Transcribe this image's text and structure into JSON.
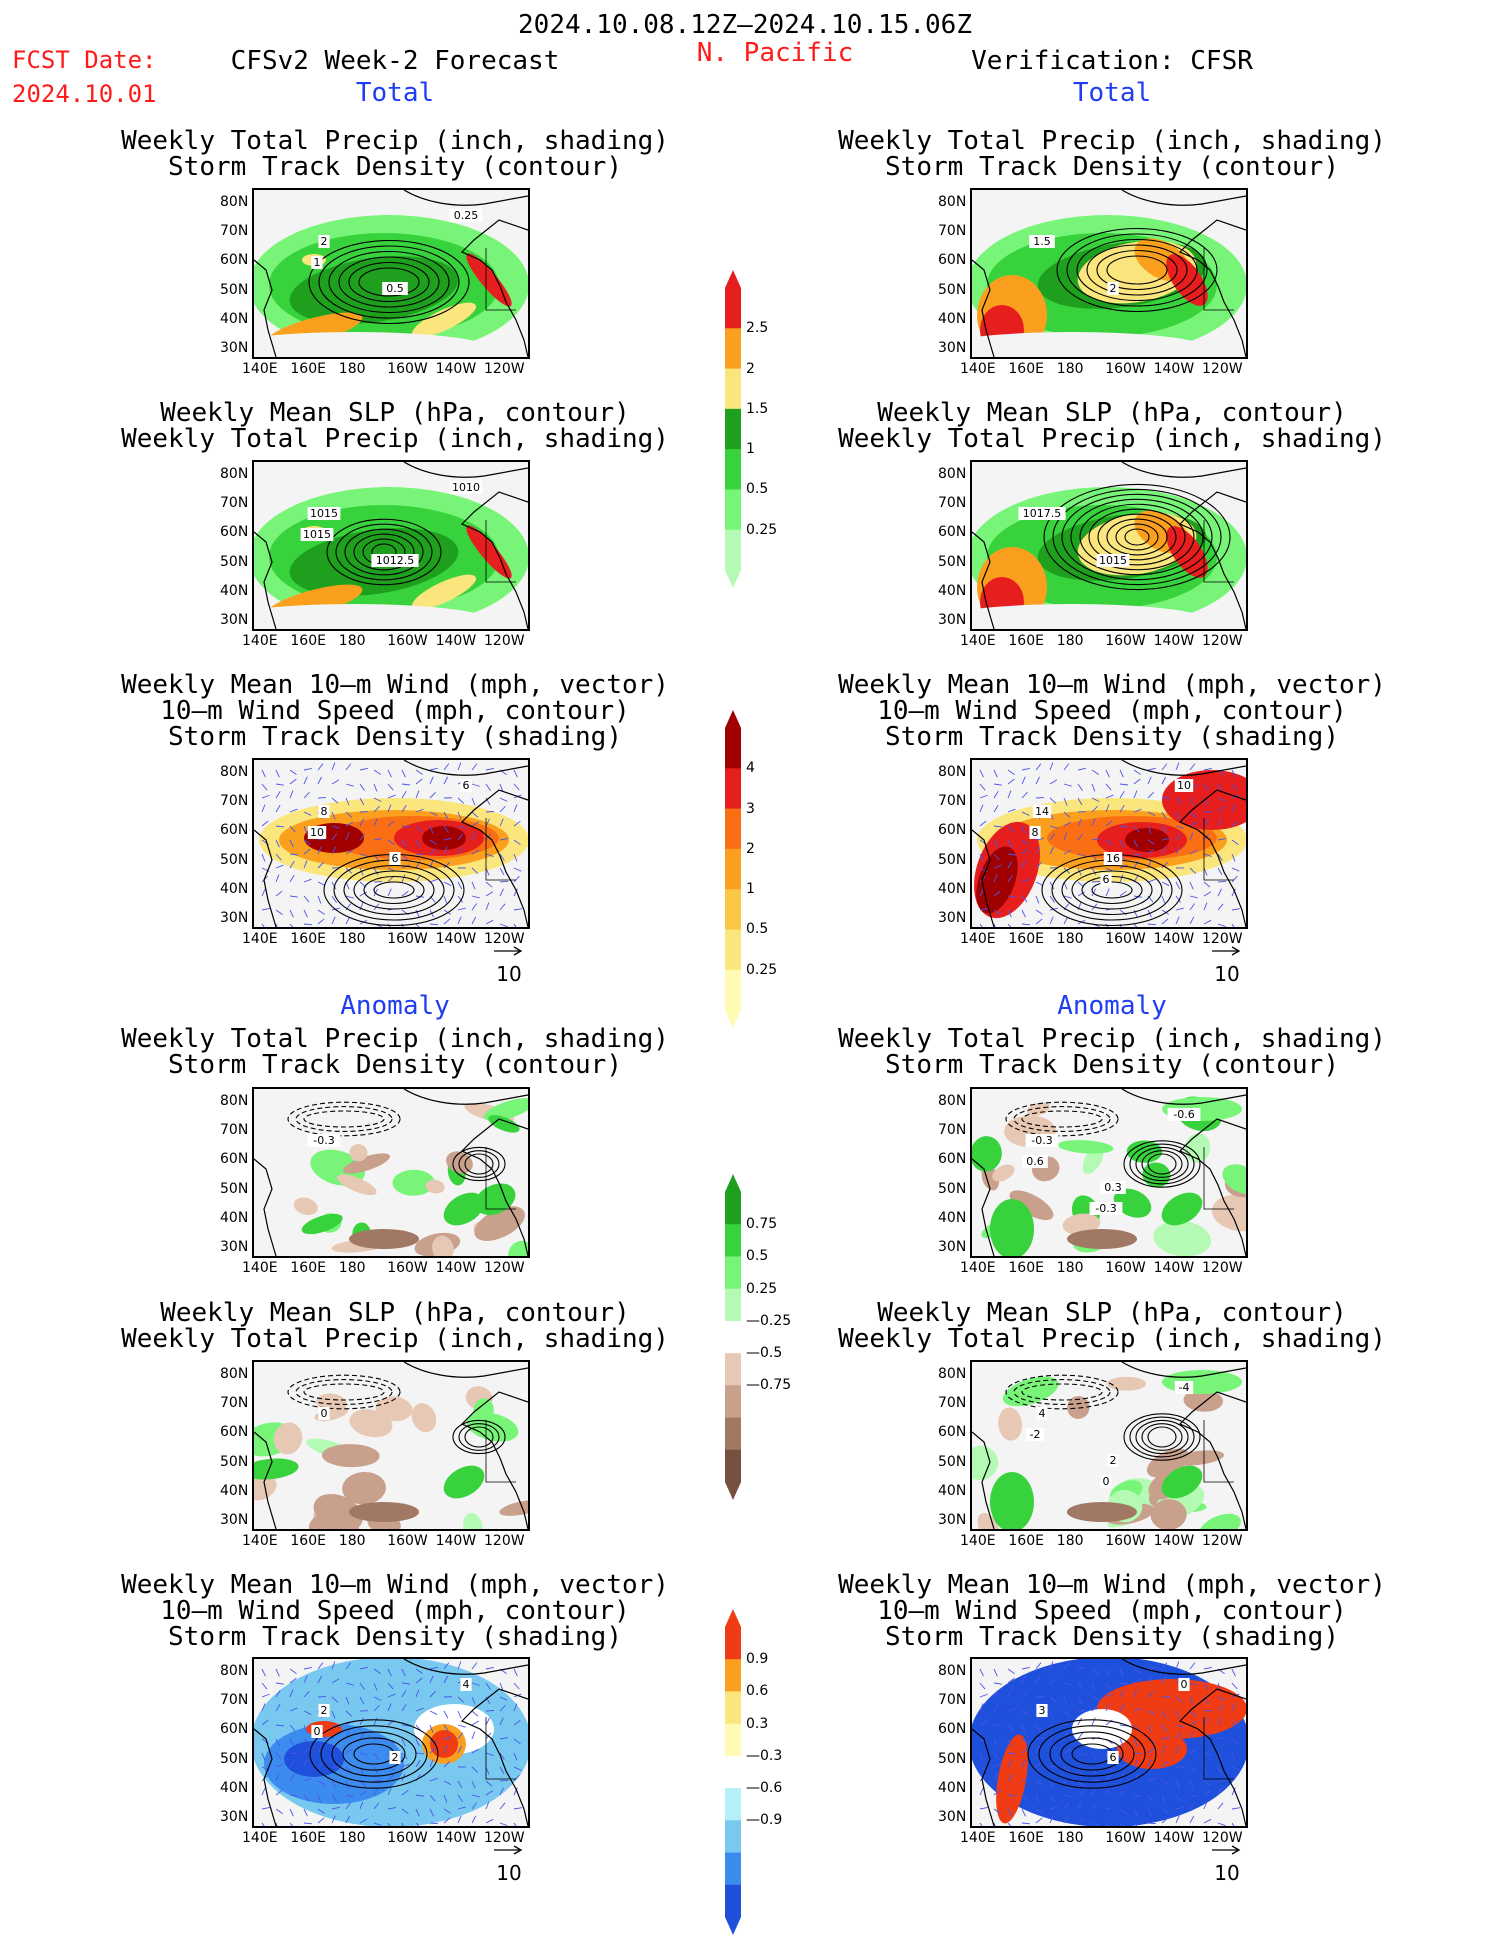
{
  "header": {
    "date_range": "2024.10.08.12Z—2024.10.15.06Z",
    "fcst_label": "FCST Date:",
    "fcst_date": "2024.10.01",
    "model_title": "CFSv2 Week-2 Forecast",
    "region": "N. Pacific",
    "verification": "Verification: CFSR"
  },
  "sections": {
    "total": "Total",
    "anomaly": "Anomaly"
  },
  "panel_titles": {
    "precip_storm": [
      "Weekly Total Precip (inch, shading)",
      "Storm Track Density (contour)"
    ],
    "slp_precip": [
      "Weekly Mean SLP (hPa, contour)",
      "Weekly Total Precip (inch, shading)"
    ],
    "wind_storm": [
      "Weekly Mean 10—m Wind (mph, vector)",
      "10—m Wind Speed (mph, contour)",
      "Storm Track Density (shading)"
    ]
  },
  "axes": {
    "lat_ticks": [
      "80N",
      "70N",
      "60N",
      "50N",
      "40N",
      "30N"
    ],
    "lon_ticks": [
      "140E",
      "160E",
      "180",
      "160W",
      "140W",
      "120W"
    ]
  },
  "vector_ref": "10",
  "chart_data": [
    {
      "type": "heatmap",
      "id": "fcst-total-precip",
      "title": "Weekly Total Precip (inch, shading) / Storm Track Density (contour)",
      "contour_labels": [
        "2",
        "0.5",
        "0.25",
        "1"
      ],
      "colors": [
        "#b4fab4",
        "#78f578",
        "#37d23c",
        "#1ea01e",
        "#fae67d",
        "#faa01e",
        "#e61e1e"
      ]
    },
    {
      "type": "heatmap",
      "id": "fcst-total-slp",
      "title": "Weekly Mean SLP (hPa, contour) / Weekly Total Precip (inch, shading)",
      "contour_labels": [
        "1015",
        "1012.5",
        "1010",
        "1015"
      ]
    },
    {
      "type": "heatmap",
      "id": "fcst-total-wind",
      "title": "Weekly Mean 10-m Wind / 10-m Wind Speed / Storm Track Density",
      "contour_labels": [
        "8",
        "6",
        "6",
        "10"
      ]
    },
    {
      "type": "heatmap",
      "id": "fcst-anom-precip",
      "title": "Weekly Total Precip anomaly / Storm Track Density anomaly",
      "contour_labels": [
        "-0.3"
      ]
    },
    {
      "type": "heatmap",
      "id": "fcst-anom-slp",
      "title": "Weekly Mean SLP anomaly / Weekly Total Precip anomaly",
      "contour_labels": [
        "0"
      ]
    },
    {
      "type": "heatmap",
      "id": "fcst-anom-wind",
      "title": "Weekly Mean 10-m Wind anomaly / Storm Track Density anomaly",
      "contour_labels": [
        "2",
        "2",
        "4",
        "0"
      ]
    },
    {
      "type": "heatmap",
      "id": "ver-total-precip",
      "title": "Weekly Total Precip (inch, shading) / Storm Track Density (contour)",
      "contour_labels": [
        "1.5",
        "2"
      ]
    },
    {
      "type": "heatmap",
      "id": "ver-total-slp",
      "title": "Weekly Mean SLP (hPa, contour) / Weekly Total Precip (inch, shading)",
      "contour_labels": [
        "1017.5",
        "1015"
      ]
    },
    {
      "type": "heatmap",
      "id": "ver-total-wind",
      "title": "Weekly Mean 10-m Wind / 10-m Wind Speed / Storm Track Density",
      "contour_labels": [
        "14",
        "16",
        "10",
        "8",
        "6"
      ]
    },
    {
      "type": "heatmap",
      "id": "ver-anom-precip",
      "title": "Weekly Total Precip anomaly / Storm Track Density anomaly",
      "contour_labels": [
        "-0.3",
        "0.3",
        "-0.6",
        "0.6",
        "-0.3"
      ]
    },
    {
      "type": "heatmap",
      "id": "ver-anom-slp",
      "title": "Weekly Mean SLP anomaly / Weekly Total Precip anomaly",
      "contour_labels": [
        "4",
        "2",
        "-4",
        "-2",
        "0"
      ]
    },
    {
      "type": "heatmap",
      "id": "ver-anom-wind",
      "title": "Weekly Mean 10-m Wind anomaly / Storm Track Density anomaly",
      "contour_labels": [
        "3",
        "6",
        "0"
      ]
    }
  ],
  "colorbars": {
    "precip_total": {
      "labels": [
        "2.5",
        "2",
        "1.5",
        "1",
        "0.5",
        "0.25"
      ],
      "colors": [
        "#e61e1e",
        "#faa01e",
        "#fae67d",
        "#1ea01e",
        "#37d23c",
        "#78f578",
        "#b4fab4"
      ]
    },
    "storm_total": {
      "labels": [
        "4",
        "3",
        "2",
        "1",
        "0.5",
        "0.25"
      ],
      "colors": [
        "#a00000",
        "#e61e1e",
        "#fa6e14",
        "#faa01e",
        "#fac846",
        "#fae67d",
        "#fffab4"
      ]
    },
    "precip_anom": {
      "labels": [
        "0.75",
        "0.5",
        "0.25",
        "—0.25",
        "—0.5",
        "—0.75"
      ],
      "colors": [
        "#1ea01e",
        "#37d23c",
        "#78f578",
        "#b4fab4",
        "#ffffff",
        "#e6c8b4",
        "#c8a08c",
        "#a07864",
        "#785040"
      ]
    },
    "storm_anom": {
      "labels": [
        "0.9",
        "0.6",
        "0.3",
        "—0.3",
        "—0.6",
        "—0.9"
      ],
      "colors": [
        "#f03c14",
        "#faa01e",
        "#fae67d",
        "#fffab4",
        "#ffffff",
        "#b4f0fa",
        "#78c8f0",
        "#3c8cf0",
        "#1e50dc"
      ]
    }
  }
}
